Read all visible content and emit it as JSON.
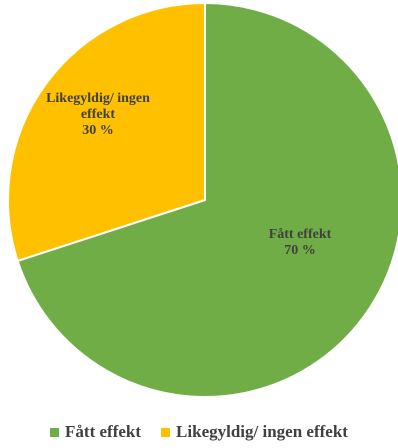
{
  "colors": {
    "fatt_effekt": "#70AD47",
    "likegyldig": "#FFC000",
    "slice_border": "#ffffff"
  },
  "chart_data": {
    "type": "pie",
    "title": "",
    "categories": [
      "Fått effekt",
      "Likegyldig/ ingen effekt"
    ],
    "values": [
      70,
      30
    ],
    "unit": "%",
    "start_angle_deg": 0,
    "direction": "clockwise",
    "slice_labels": [
      {
        "lines": [
          "Fått effekt",
          "70 %"
        ]
      },
      {
        "lines": [
          "Likegyldig/ ingen",
          "effekt",
          "30 %"
        ]
      }
    ],
    "legend": {
      "placement": "bottom",
      "entries": [
        "Fått effekt",
        "Likegyldig/ ingen effekt"
      ]
    }
  }
}
